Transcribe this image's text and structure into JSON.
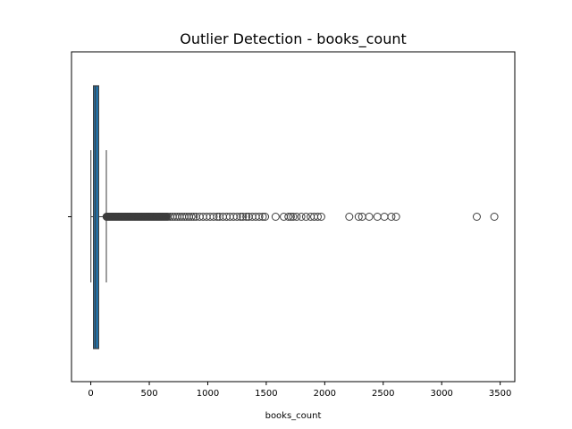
{
  "chart_data": {
    "type": "boxplot",
    "title": "Outlier Detection - books_count",
    "xlabel": "books_count",
    "ylabel": "",
    "orientation": "horizontal",
    "xlim": [
      -165,
      3625
    ],
    "xticks": [
      0,
      500,
      1000,
      1500,
      2000,
      2500,
      3000,
      3500
    ],
    "grid": false,
    "legend": "none",
    "box": {
      "whisker_low": 1,
      "q1": 23,
      "median": 40,
      "q3": 67,
      "whisker_high": 133,
      "fill_color": "#1f77b4",
      "line_color": "#3d3d3d"
    },
    "dense_outlier_range": [
      135,
      650
    ],
    "outliers": [
      660,
      680,
      700,
      720,
      740,
      760,
      780,
      800,
      820,
      840,
      860,
      880,
      900,
      930,
      960,
      990,
      1020,
      1050,
      1080,
      1100,
      1130,
      1160,
      1190,
      1220,
      1250,
      1280,
      1300,
      1330,
      1350,
      1380,
      1410,
      1440,
      1470,
      1490,
      1580,
      1650,
      1690,
      1710,
      1730,
      1760,
      1800,
      1840,
      1880,
      1910,
      1940,
      1970,
      2210,
      2290,
      2320,
      2380,
      2450,
      2510,
      2570,
      2610,
      3300,
      3450
    ]
  }
}
